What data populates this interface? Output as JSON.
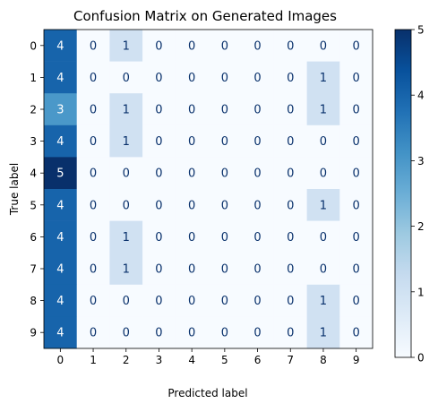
{
  "chart_data": {
    "type": "heatmap",
    "title": "Confusion Matrix on Generated Images",
    "xlabel": "Predicted label",
    "ylabel": "True label",
    "x_ticks": [
      "0",
      "1",
      "2",
      "3",
      "4",
      "5",
      "6",
      "7",
      "8",
      "9"
    ],
    "y_ticks": [
      "0",
      "1",
      "2",
      "3",
      "4",
      "5",
      "6",
      "7",
      "8",
      "9"
    ],
    "matrix": [
      [
        4,
        0,
        1,
        0,
        0,
        0,
        0,
        0,
        0,
        0
      ],
      [
        4,
        0,
        0,
        0,
        0,
        0,
        0,
        0,
        1,
        0
      ],
      [
        3,
        0,
        1,
        0,
        0,
        0,
        0,
        0,
        1,
        0
      ],
      [
        4,
        0,
        1,
        0,
        0,
        0,
        0,
        0,
        0,
        0
      ],
      [
        5,
        0,
        0,
        0,
        0,
        0,
        0,
        0,
        0,
        0
      ],
      [
        4,
        0,
        0,
        0,
        0,
        0,
        0,
        0,
        1,
        0
      ],
      [
        4,
        0,
        1,
        0,
        0,
        0,
        0,
        0,
        0,
        0
      ],
      [
        4,
        0,
        1,
        0,
        0,
        0,
        0,
        0,
        0,
        0
      ],
      [
        4,
        0,
        0,
        0,
        0,
        0,
        0,
        0,
        1,
        0
      ],
      [
        4,
        0,
        0,
        0,
        0,
        0,
        0,
        0,
        1,
        0
      ]
    ],
    "colormap": "Blues",
    "vmin": 0,
    "vmax": 5,
    "colorbar_ticks": [
      "0",
      "1",
      "2",
      "3",
      "4",
      "5"
    ],
    "grid": false
  }
}
